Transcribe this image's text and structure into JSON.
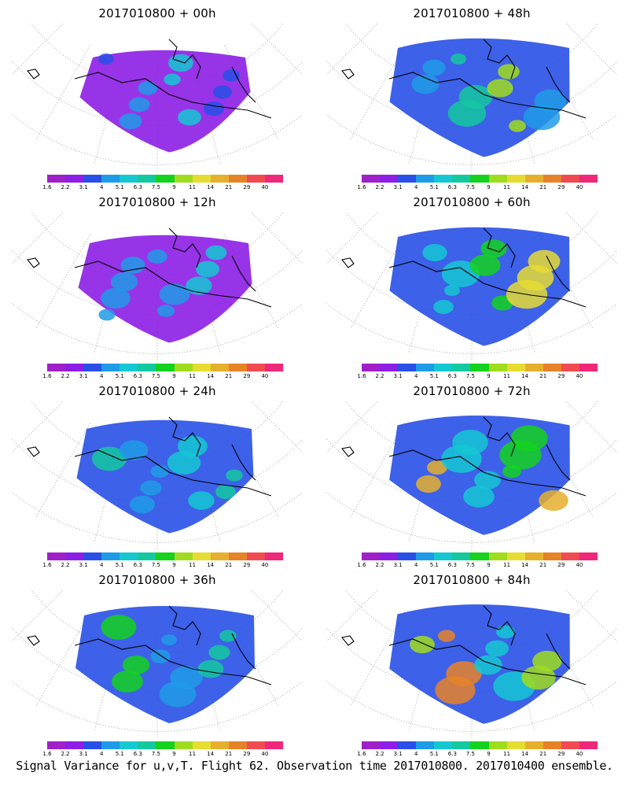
{
  "footer": "Signal Variance for u,v,T. Flight 62. Observation time 2017010800. 2017010400 ensemble.",
  "colorbar": {
    "ticks": [
      "1.6",
      "2.2",
      "3.1",
      "4",
      "5.1",
      "6.3",
      "7.5",
      "9",
      "11",
      "14",
      "21",
      "29",
      "40"
    ],
    "colors": [
      "#a020c8",
      "#8c1ee6",
      "#2850e6",
      "#1e9be6",
      "#14c8d2",
      "#14c8a0",
      "#14d21e",
      "#a0dc1e",
      "#e6dc32",
      "#e6af2d",
      "#e68228",
      "#f04b50",
      "#f0287a"
    ]
  },
  "panels": [
    {
      "id": "p00",
      "title": "2017010800 + 00h",
      "coverage": 0.35,
      "intensity": 0.15
    },
    {
      "id": "p48",
      "title": "2017010800 + 48h",
      "coverage": 0.95,
      "intensity": 0.45
    },
    {
      "id": "p12",
      "title": "2017010800 + 12h",
      "coverage": 0.55,
      "intensity": 0.2
    },
    {
      "id": "p60",
      "title": "2017010800 + 60h",
      "coverage": 0.95,
      "intensity": 0.5
    },
    {
      "id": "p24",
      "title": "2017010800 + 24h",
      "coverage": 0.75,
      "intensity": 0.3
    },
    {
      "id": "p72",
      "title": "2017010800 + 72h",
      "coverage": 0.98,
      "intensity": 0.6
    },
    {
      "id": "p36",
      "title": "2017010800 + 36h",
      "coverage": 0.9,
      "intensity": 0.38
    },
    {
      "id": "p84",
      "title": "2017010800 + 84h",
      "coverage": 0.98,
      "intensity": 0.7
    }
  ]
}
